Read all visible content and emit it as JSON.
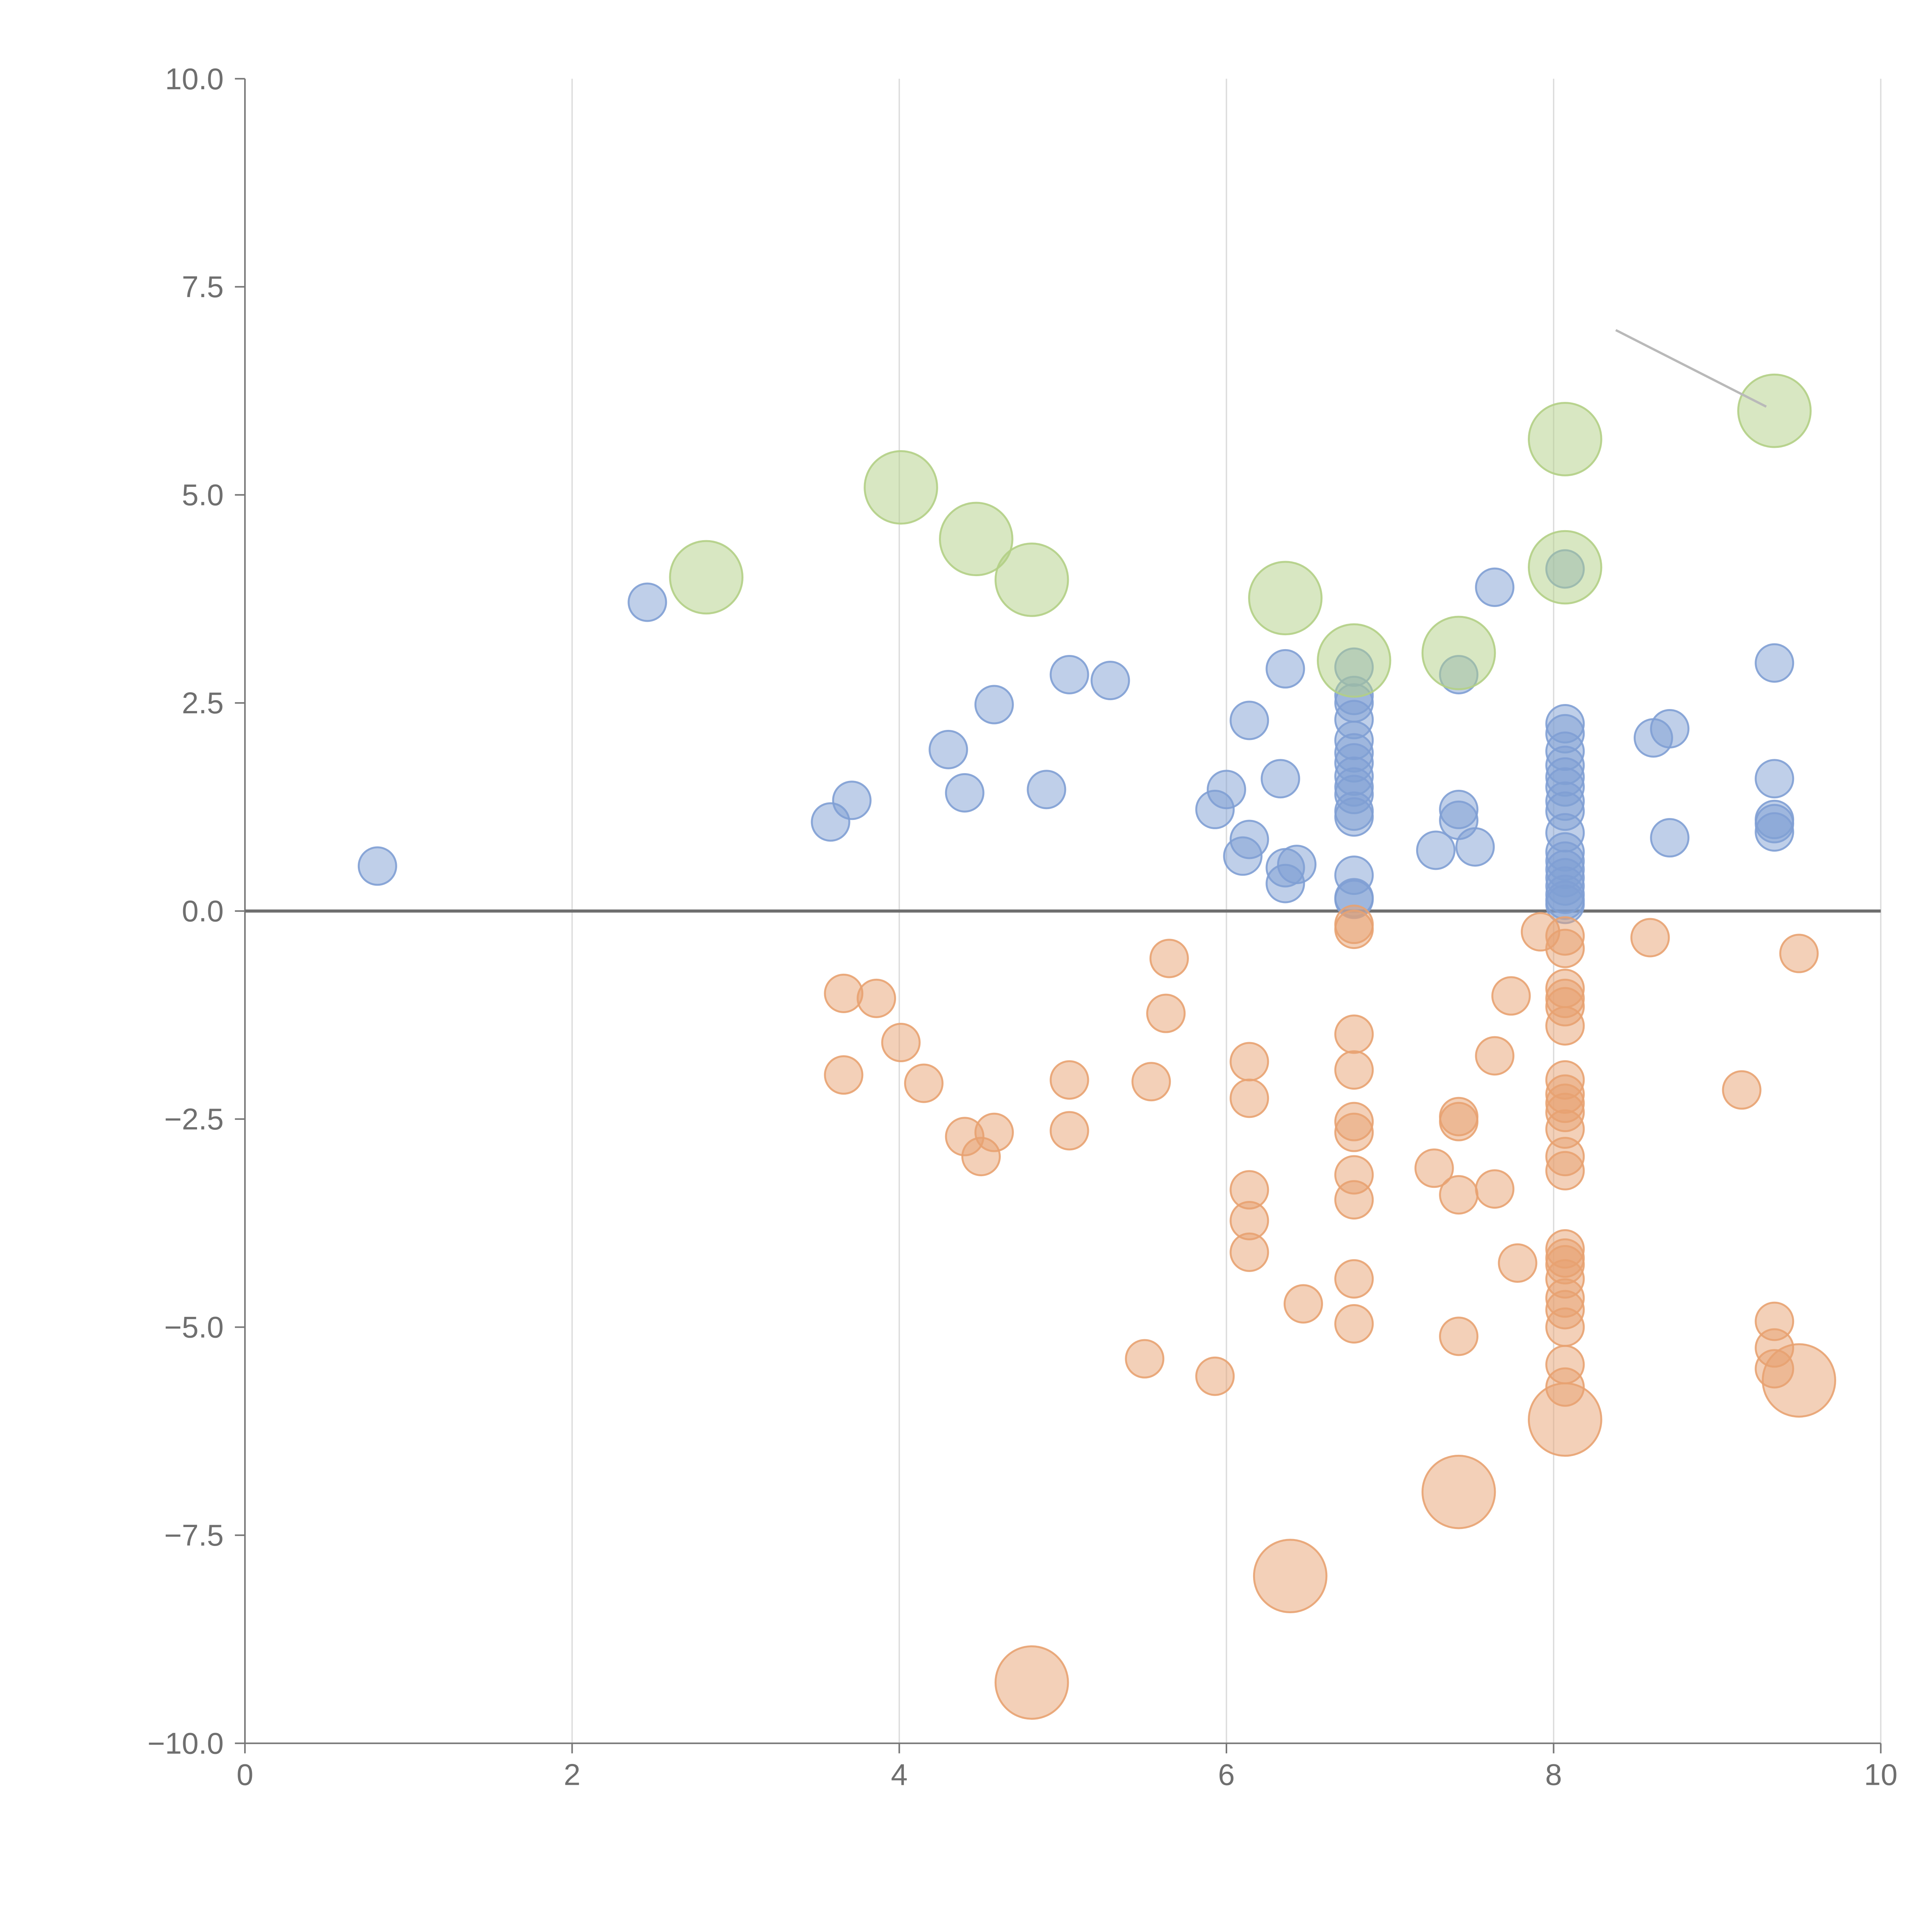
{
  "chart_data": {
    "type": "scatter",
    "title": "",
    "xlabel": "",
    "ylabel": "",
    "xlim": [
      0,
      10
    ],
    "ylim": [
      -10,
      10
    ],
    "xticks": [
      "0",
      "2",
      "4",
      "6",
      "8",
      "10"
    ],
    "yticks": [
      "10.0",
      "7.5",
      "5.0",
      "2.5",
      "0.0",
      "−2.5",
      "−5.0",
      "−7.5",
      "−10.0"
    ],
    "grid": {
      "x": true,
      "y": false
    },
    "zero_line": true,
    "series": [
      {
        "color": "#7f9fd4",
        "size": "small",
        "points": [
          [
            0.81,
            0.54
          ],
          [
            2.46,
            3.71
          ],
          [
            3.58,
            1.07
          ],
          [
            3.71,
            1.33
          ],
          [
            4.3,
            1.94
          ],
          [
            4.4,
            1.42
          ],
          [
            4.58,
            2.48
          ],
          [
            4.9,
            1.46
          ],
          [
            5.04,
            2.84
          ],
          [
            5.29,
            2.77
          ],
          [
            5.93,
            1.22
          ],
          [
            6.0,
            1.46
          ],
          [
            6.1,
            0.66
          ],
          [
            6.14,
            0.86
          ],
          [
            6.14,
            2.29
          ],
          [
            6.33,
            1.59
          ],
          [
            6.36,
            2.91
          ],
          [
            6.36,
            0.52
          ],
          [
            6.36,
            0.33
          ],
          [
            6.43,
            0.56
          ],
          [
            6.78,
            2.93
          ],
          [
            6.78,
            2.59
          ],
          [
            6.78,
            2.5
          ],
          [
            6.78,
            2.3
          ],
          [
            6.78,
            2.05
          ],
          [
            6.78,
            1.9
          ],
          [
            6.78,
            1.78
          ],
          [
            6.78,
            1.62
          ],
          [
            6.78,
            1.49
          ],
          [
            6.78,
            1.4
          ],
          [
            6.78,
            1.2
          ],
          [
            6.78,
            1.13
          ],
          [
            6.78,
            0.43
          ],
          [
            6.78,
            0.16
          ],
          [
            6.78,
            0.14
          ],
          [
            7.28,
            0.73
          ],
          [
            7.42,
            2.84
          ],
          [
            7.42,
            1.22
          ],
          [
            7.42,
            1.09
          ],
          [
            7.52,
            0.77
          ],
          [
            7.64,
            3.89
          ],
          [
            8.07,
            4.11
          ],
          [
            8.07,
            2.25
          ],
          [
            8.07,
            2.13
          ],
          [
            8.07,
            1.92
          ],
          [
            8.07,
            1.75
          ],
          [
            8.07,
            1.61
          ],
          [
            8.07,
            1.49
          ],
          [
            8.07,
            1.32
          ],
          [
            8.07,
            1.2
          ],
          [
            8.07,
            0.94
          ],
          [
            8.07,
            0.71
          ],
          [
            8.07,
            0.6
          ],
          [
            8.07,
            0.5
          ],
          [
            8.07,
            0.4
          ],
          [
            8.07,
            0.3
          ],
          [
            8.07,
            0.2
          ],
          [
            8.07,
            0.13
          ],
          [
            8.07,
            0.08
          ],
          [
            8.61,
            2.08
          ],
          [
            8.71,
            2.19
          ],
          [
            8.71,
            0.88
          ],
          [
            9.35,
            2.98
          ],
          [
            9.35,
            1.59
          ],
          [
            9.35,
            1.1
          ],
          [
            9.35,
            1.05
          ],
          [
            9.35,
            0.95
          ]
        ]
      },
      {
        "color": "#e8a271",
        "size": "small",
        "points": [
          [
            3.66,
            -0.99
          ],
          [
            3.66,
            -1.97
          ],
          [
            3.86,
            -1.05
          ],
          [
            4.01,
            -1.58
          ],
          [
            4.15,
            -2.07
          ],
          [
            4.4,
            -2.71
          ],
          [
            4.5,
            -2.95
          ],
          [
            4.58,
            -2.66
          ],
          [
            5.04,
            -2.03
          ],
          [
            5.04,
            -2.64
          ],
          [
            5.5,
            -5.38
          ],
          [
            5.54,
            -2.05
          ],
          [
            5.63,
            -1.23
          ],
          [
            5.65,
            -0.57
          ],
          [
            5.93,
            -5.59
          ],
          [
            6.14,
            -1.81
          ],
          [
            6.14,
            -2.25
          ],
          [
            6.14,
            -3.35
          ],
          [
            6.14,
            -3.72
          ],
          [
            6.14,
            -4.1
          ],
          [
            6.47,
            -4.72
          ],
          [
            6.78,
            -0.16
          ],
          [
            6.78,
            -0.22
          ],
          [
            6.78,
            -1.48
          ],
          [
            6.78,
            -1.91
          ],
          [
            6.78,
            -2.53
          ],
          [
            6.78,
            -2.66
          ],
          [
            6.78,
            -3.17
          ],
          [
            6.78,
            -3.47
          ],
          [
            6.78,
            -4.42
          ],
          [
            6.78,
            -4.96
          ],
          [
            7.27,
            -3.09
          ],
          [
            7.42,
            -2.47
          ],
          [
            7.42,
            -2.53
          ],
          [
            7.42,
            -3.41
          ],
          [
            7.42,
            -5.11
          ],
          [
            7.64,
            -1.74
          ],
          [
            7.64,
            -3.34
          ],
          [
            7.74,
            -1.02
          ],
          [
            7.78,
            -4.23
          ],
          [
            7.92,
            -0.25
          ],
          [
            8.07,
            -0.3
          ],
          [
            8.07,
            -0.45
          ],
          [
            8.07,
            -0.93
          ],
          [
            8.07,
            -1.05
          ],
          [
            8.07,
            -1.15
          ],
          [
            8.07,
            -1.38
          ],
          [
            8.07,
            -2.03
          ],
          [
            8.07,
            -2.2
          ],
          [
            8.07,
            -2.31
          ],
          [
            8.07,
            -2.42
          ],
          [
            8.07,
            -2.62
          ],
          [
            8.07,
            -2.95
          ],
          [
            8.07,
            -3.12
          ],
          [
            8.07,
            -4.06
          ],
          [
            8.07,
            -4.17
          ],
          [
            8.07,
            -4.25
          ],
          [
            8.07,
            -4.42
          ],
          [
            8.07,
            -4.65
          ],
          [
            8.07,
            -4.79
          ],
          [
            8.07,
            -5.0
          ],
          [
            8.07,
            -5.45
          ],
          [
            8.07,
            -5.72
          ],
          [
            8.59,
            -0.32
          ],
          [
            9.15,
            -2.15
          ],
          [
            9.35,
            -4.93
          ],
          [
            9.35,
            -5.25
          ],
          [
            9.35,
            -5.5
          ],
          [
            9.5,
            -0.51
          ]
        ]
      },
      {
        "color": "#b2cf85",
        "size": "large",
        "points": [
          [
            2.82,
            4.01
          ],
          [
            4.01,
            5.09
          ],
          [
            4.47,
            4.47
          ],
          [
            4.81,
            3.98
          ],
          [
            6.36,
            3.76
          ],
          [
            6.78,
            3.01
          ],
          [
            7.42,
            3.1
          ],
          [
            8.07,
            5.67
          ],
          [
            8.07,
            4.13
          ],
          [
            9.35,
            6.01
          ]
        ]
      },
      {
        "color": "#e8a271",
        "size": "large",
        "points": [
          [
            4.81,
            -9.27
          ],
          [
            6.39,
            -7.99
          ],
          [
            7.42,
            -6.98
          ],
          [
            8.07,
            -6.11
          ],
          [
            9.5,
            -5.64
          ]
        ]
      }
    ],
    "annotation_leader": {
      "from": [
        8.38,
        6.98
      ],
      "to": [
        9.3,
        6.06
      ]
    }
  }
}
